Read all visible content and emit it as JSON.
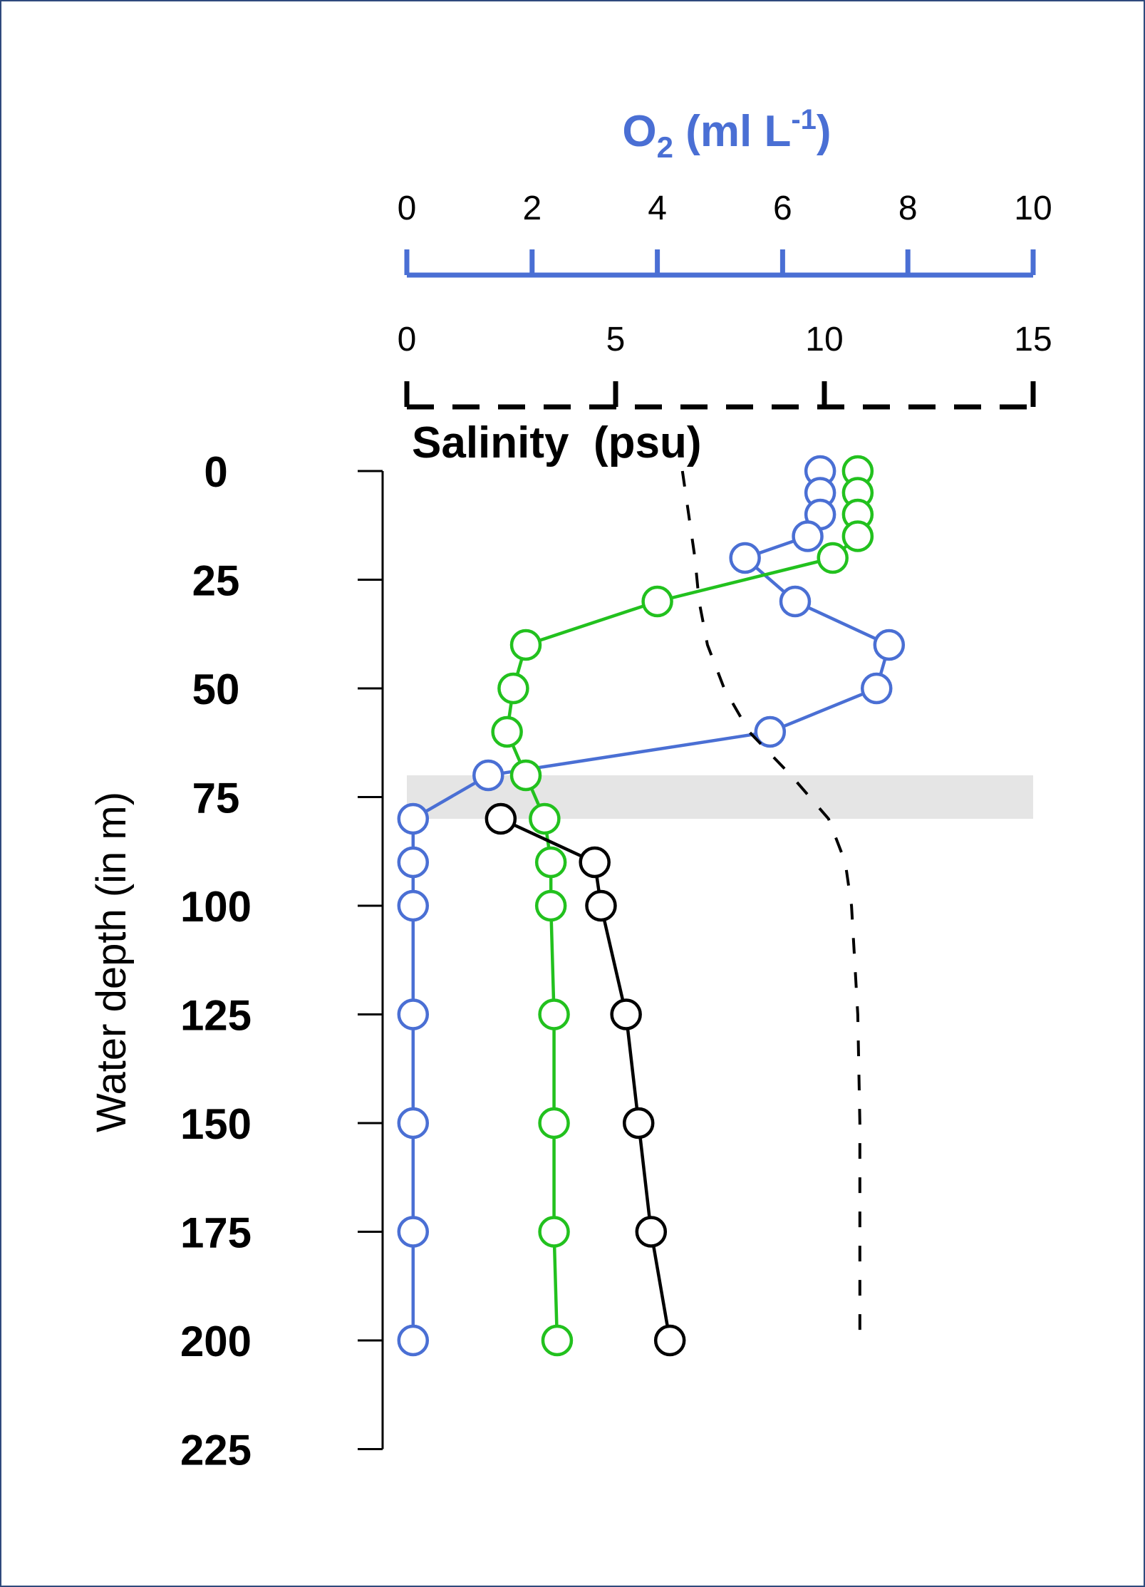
{
  "chart_data": {
    "type": "line",
    "title": "",
    "ylabel": "Water depth (in m)",
    "ylim": [
      0,
      225
    ],
    "y_inverted": true,
    "yticks": [
      "0",
      "25",
      "50",
      "75",
      "100",
      "125",
      "150",
      "175",
      "200",
      "225"
    ],
    "o2_axis": {
      "label_main": "O",
      "label_sub": "2",
      "label_units": " (ml L",
      "label_sup": "-1",
      "label_close": ")",
      "range": [
        0,
        10
      ],
      "ticks": [
        "0",
        "2",
        "4",
        "6",
        "8",
        "10"
      ],
      "color": "#4a6fd4"
    },
    "salinity_axis": {
      "label": "Salinity  (psu)",
      "range": [
        0,
        15
      ],
      "ticks": [
        "0",
        "5",
        "10",
        "15"
      ],
      "line_style": "dashed",
      "color": "#000000"
    },
    "shaded_band": {
      "depth_from": 70,
      "depth_to": 80,
      "color": "#e5e5e5"
    },
    "grid": false,
    "legend": "none",
    "series": [
      {
        "color": "#4a6fd4",
        "axis": "o2",
        "marker": "open-circle",
        "points": [
          {
            "x": 6.6,
            "depth": 0
          },
          {
            "x": 6.6,
            "depth": 5
          },
          {
            "x": 6.6,
            "depth": 10
          },
          {
            "x": 6.4,
            "depth": 15
          },
          {
            "x": 5.4,
            "depth": 20
          },
          {
            "x": 6.2,
            "depth": 30
          },
          {
            "x": 7.7,
            "depth": 40
          },
          {
            "x": 7.5,
            "depth": 50
          },
          {
            "x": 5.8,
            "depth": 60
          },
          {
            "x": 1.3,
            "depth": 70
          },
          {
            "x": 0.1,
            "depth": 80
          },
          {
            "x": 0.1,
            "depth": 90
          },
          {
            "x": 0.1,
            "depth": 100
          },
          {
            "x": 0.1,
            "depth": 125
          },
          {
            "x": 0.1,
            "depth": 150
          },
          {
            "x": 0.1,
            "depth": 175
          },
          {
            "x": 0.1,
            "depth": 200
          }
        ]
      },
      {
        "color": "#22c11e",
        "axis": "o2",
        "marker": "open-circle",
        "points": [
          {
            "x": 7.2,
            "depth": 0
          },
          {
            "x": 7.2,
            "depth": 5
          },
          {
            "x": 7.2,
            "depth": 10
          },
          {
            "x": 7.2,
            "depth": 15
          },
          {
            "x": 6.8,
            "depth": 20
          },
          {
            "x": 4.0,
            "depth": 30
          },
          {
            "x": 1.9,
            "depth": 40
          },
          {
            "x": 1.7,
            "depth": 50
          },
          {
            "x": 1.6,
            "depth": 60
          },
          {
            "x": 1.9,
            "depth": 70
          },
          {
            "x": 2.2,
            "depth": 80
          },
          {
            "x": 2.3,
            "depth": 90
          },
          {
            "x": 2.3,
            "depth": 100
          },
          {
            "x": 2.35,
            "depth": 125
          },
          {
            "x": 2.35,
            "depth": 150
          },
          {
            "x": 2.35,
            "depth": 175
          },
          {
            "x": 2.4,
            "depth": 200
          }
        ]
      },
      {
        "color": "#000000",
        "axis": "o2",
        "marker": "open-circle",
        "points": [
          {
            "x": 1.5,
            "depth": 80
          },
          {
            "x": 3.0,
            "depth": 90
          },
          {
            "x": 3.1,
            "depth": 100
          },
          {
            "x": 3.5,
            "depth": 125
          },
          {
            "x": 3.7,
            "depth": 150
          },
          {
            "x": 3.9,
            "depth": 175
          },
          {
            "x": 4.2,
            "depth": 200
          }
        ]
      },
      {
        "color": "#000000",
        "axis": "salinity",
        "line_style": "dashed",
        "marker": "none",
        "points": [
          {
            "x": 6.6,
            "depth": 0
          },
          {
            "x": 6.75,
            "depth": 10
          },
          {
            "x": 6.9,
            "depth": 20
          },
          {
            "x": 7.0,
            "depth": 30
          },
          {
            "x": 7.2,
            "depth": 40
          },
          {
            "x": 7.6,
            "depth": 50
          },
          {
            "x": 8.2,
            "depth": 60
          },
          {
            "x": 9.2,
            "depth": 70
          },
          {
            "x": 10.1,
            "depth": 80
          },
          {
            "x": 10.5,
            "depth": 90
          },
          {
            "x": 10.65,
            "depth": 100
          },
          {
            "x": 10.8,
            "depth": 125
          },
          {
            "x": 10.85,
            "depth": 150
          },
          {
            "x": 10.85,
            "depth": 175
          },
          {
            "x": 10.85,
            "depth": 200
          }
        ]
      }
    ]
  }
}
